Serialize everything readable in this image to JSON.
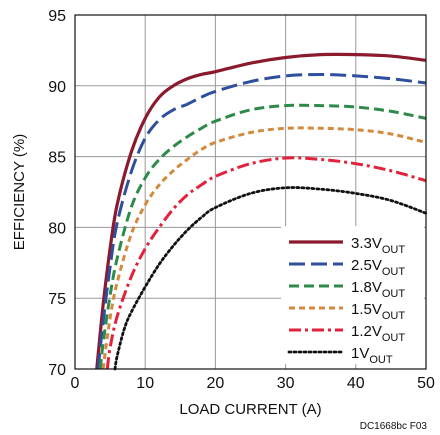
{
  "chart_data": {
    "type": "line",
    "title": "",
    "xlabel": "LOAD CURRENT (A)",
    "ylabel": "EFFICIENCY (%)",
    "xlim": [
      0,
      50
    ],
    "ylim": [
      70,
      95
    ],
    "xticks": [
      0,
      10,
      20,
      30,
      40,
      50
    ],
    "yticks": [
      70,
      75,
      80,
      85,
      90,
      95
    ],
    "grid": true,
    "legend_position": "lower-right",
    "footnote": "DC1668bc F03",
    "series": [
      {
        "name": "3.3V",
        "subscript": "OUT",
        "color": "#8b1a2e",
        "dash": "solid",
        "x": [
          3.1,
          4,
          5,
          6,
          8,
          10,
          12,
          14,
          16,
          18,
          20,
          25,
          30,
          35,
          40,
          45,
          50
        ],
        "y": [
          70,
          74.5,
          78.5,
          81.6,
          85.3,
          87.7,
          89.2,
          90.0,
          90.5,
          90.8,
          91.0,
          91.6,
          92.0,
          92.2,
          92.2,
          92.1,
          91.8
        ]
      },
      {
        "name": "2.5V",
        "subscript": "OUT",
        "color": "#2e4f9e",
        "dash": "long",
        "x": [
          3.3,
          4,
          5,
          6,
          8,
          10,
          12,
          14,
          16,
          18,
          20,
          25,
          30,
          35,
          40,
          45,
          50
        ],
        "y": [
          70,
          73.3,
          77.2,
          80.3,
          83.9,
          86.3,
          87.6,
          88.3,
          88.7,
          89.2,
          89.6,
          90.3,
          90.7,
          90.8,
          90.7,
          90.5,
          90.2
        ]
      },
      {
        "name": "1.8V",
        "subscript": "OUT",
        "color": "#2f8a4a",
        "dash": "medium",
        "x": [
          3.6,
          4,
          5,
          6,
          8,
          10,
          12,
          14,
          16,
          18,
          20,
          25,
          30,
          35,
          40,
          45,
          50
        ],
        "y": [
          70,
          71.8,
          75.2,
          77.8,
          81.4,
          83.5,
          84.8,
          85.7,
          86.4,
          87.0,
          87.5,
          88.3,
          88.6,
          88.6,
          88.5,
          88.2,
          87.7
        ]
      },
      {
        "name": "1.5V",
        "subscript": "OUT",
        "color": "#d38a3f",
        "dash": "short",
        "x": [
          4.0,
          5,
          6,
          8,
          10,
          12,
          14,
          16,
          18,
          20,
          25,
          30,
          35,
          40,
          45,
          50
        ],
        "y": [
          70,
          73.6,
          76.1,
          79.5,
          81.6,
          83.0,
          84.0,
          84.8,
          85.5,
          86.0,
          86.7,
          87.0,
          87.0,
          86.9,
          86.6,
          86.0
        ]
      },
      {
        "name": "1.2V",
        "subscript": "OUT",
        "color": "#e2213b",
        "dash": "dashdot",
        "x": [
          4.6,
          5,
          6,
          8,
          10,
          12,
          14,
          16,
          18,
          20,
          25,
          30,
          35,
          40,
          45,
          50
        ],
        "y": [
          70,
          71.5,
          73.7,
          76.5,
          78.5,
          80.0,
          81.3,
          82.3,
          83.0,
          83.6,
          84.5,
          84.9,
          84.8,
          84.5,
          84.0,
          83.3
        ]
      },
      {
        "name": "1V",
        "subscript": "OUT",
        "color": "#111111",
        "dash": "dotted",
        "x": [
          5.7,
          6,
          7,
          8,
          10,
          12,
          14,
          16,
          18,
          20,
          25,
          30,
          35,
          40,
          45,
          50
        ],
        "y": [
          70,
          70.9,
          72.8,
          74.0,
          75.8,
          77.4,
          78.7,
          79.8,
          80.7,
          81.4,
          82.4,
          82.8,
          82.7,
          82.4,
          81.9,
          81.0
        ]
      }
    ]
  }
}
